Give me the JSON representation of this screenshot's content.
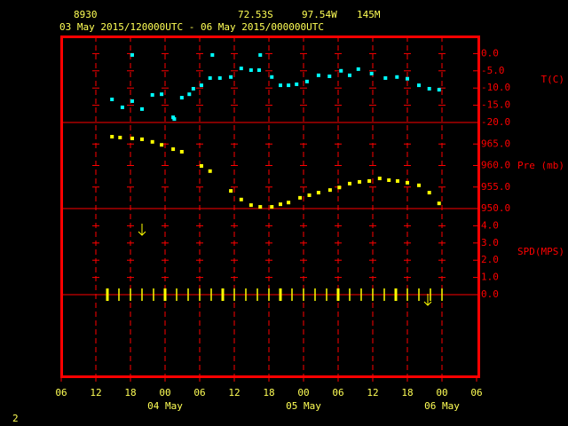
{
  "header": {
    "station": "8930",
    "latitude": "72.53S",
    "longitude": "97.54W",
    "elevation": "145M",
    "period": "03 May 2015/120000UTC - 06 May 2015/000000UTC"
  },
  "footer": "2",
  "chart_data": [
    {
      "type": "scatter",
      "ylabel": "T(C)",
      "color": "#00ffff",
      "x": [
        14.8,
        16.6,
        18.3,
        18.3,
        20,
        21.8,
        23.4,
        25.4,
        25.6,
        26.9,
        28.2,
        28.9,
        30.3,
        31.8,
        32.2,
        33.5,
        35.4,
        37.2,
        38.9,
        40.3,
        40.5,
        42.5,
        44,
        45.4,
        46.8,
        48.6,
        50.6,
        52.5,
        54.5,
        56,
        57.5,
        59.8,
        62.2,
        64.2,
        66,
        68,
        69.8,
        71.5
      ],
      "values": [
        -13.3,
        -15.6,
        -13.8,
        -0.4,
        -16.1,
        -12.0,
        -11.8,
        -18.5,
        -19.0,
        -12.8,
        -11.8,
        -10.2,
        -9.2,
        -7.1,
        -0.4,
        -7.1,
        -6.8,
        -4.3,
        -4.8,
        -4.8,
        -0.4,
        -6.8,
        -9.2,
        -9.2,
        -8.9,
        -8.1,
        -6.3,
        -6.6,
        -5.0,
        -6.3,
        -4.5,
        -5.8,
        -7.1,
        -6.8,
        -7.3,
        -9.2,
        -10.2,
        -10.5
      ],
      "ylim": [
        -20,
        5
      ],
      "yticks": [
        {
          "value": 0,
          "label": "0.0"
        },
        {
          "value": -5,
          "label": "-5.0"
        },
        {
          "value": -10,
          "label": "-10.0"
        },
        {
          "value": -15,
          "label": "-15.0"
        },
        {
          "value": -20,
          "label": "-20.0"
        }
      ]
    },
    {
      "type": "scatter",
      "ylabel": "Pre (mb)",
      "color": "#ffff00",
      "x": [
        14.8,
        16.2,
        18.3,
        20,
        21.8,
        23.4,
        25.4,
        26.9,
        30.3,
        31.8,
        35.4,
        37.2,
        38.9,
        40.5,
        42.5,
        44,
        45.4,
        47.4,
        49,
        50.6,
        52.6,
        54.2,
        56,
        57.7,
        59.4,
        61.2,
        62.8,
        64.3,
        66,
        68,
        69.8,
        71.5
      ],
      "values": [
        966.7,
        966.5,
        966.3,
        966.1,
        965.5,
        964.8,
        963.8,
        963.2,
        959.9,
        958.7,
        954.1,
        952.1,
        950.8,
        950.4,
        950.4,
        951.0,
        951.4,
        952.5,
        953.1,
        953.7,
        954.3,
        954.9,
        955.8,
        956.2,
        956.4,
        957.0,
        956.6,
        956.4,
        956.0,
        955.4,
        953.7,
        951.2
      ],
      "ylim": [
        950,
        970
      ],
      "yticks": [
        {
          "value": 965,
          "label": "965.0"
        },
        {
          "value": 960,
          "label": "960.0"
        },
        {
          "value": 955,
          "label": "955.0"
        },
        {
          "value": 950,
          "label": "950.0"
        }
      ]
    },
    {
      "type": "barb",
      "ylabel": "SPD(MPS)",
      "color": "#ffff00",
      "x": [
        14,
        16,
        18,
        20,
        22,
        24,
        26,
        28,
        30,
        32,
        34,
        36,
        38,
        40,
        42,
        44,
        46,
        48,
        50,
        52,
        54,
        56,
        58,
        60,
        62,
        64,
        66,
        68,
        70,
        72
      ],
      "values": [
        0,
        0,
        0,
        0,
        0,
        0,
        0,
        0,
        0,
        0,
        0,
        0,
        0,
        0,
        0,
        0,
        0,
        0,
        0,
        0,
        0,
        0,
        0,
        0,
        0,
        0,
        0,
        0,
        0,
        0
      ],
      "ylim": [
        0,
        5
      ],
      "yticks": [
        {
          "value": 4,
          "label": "4.0"
        },
        {
          "value": 3,
          "label": "3.0"
        },
        {
          "value": 2,
          "label": "2.0"
        },
        {
          "value": 1,
          "label": "1.0"
        },
        {
          "value": 0,
          "label": "0.0"
        }
      ],
      "xlim": [
        6,
        78
      ],
      "xticks": [
        {
          "value": 6,
          "label": "06"
        },
        {
          "value": 12,
          "label": "12"
        },
        {
          "value": 18,
          "label": "18"
        },
        {
          "value": 24,
          "label": "00"
        },
        {
          "value": 30,
          "label": "06"
        },
        {
          "value": 36,
          "label": "12"
        },
        {
          "value": 42,
          "label": "18"
        },
        {
          "value": 48,
          "label": "00"
        },
        {
          "value": 54,
          "label": "06"
        },
        {
          "value": 60,
          "label": "12"
        },
        {
          "value": 66,
          "label": "18"
        },
        {
          "value": 72,
          "label": "00"
        },
        {
          "value": 78,
          "label": "06"
        }
      ],
      "date_ticks": [
        {
          "value": 24,
          "label": "04 May"
        },
        {
          "value": 48,
          "label": "05 May"
        },
        {
          "value": 72,
          "label": "06 May"
        }
      ]
    }
  ]
}
